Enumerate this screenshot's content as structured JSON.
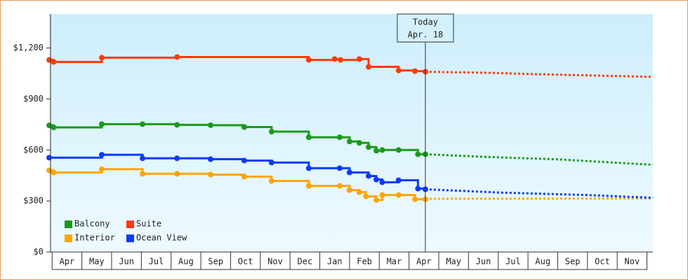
{
  "chart_data": {
    "type": "step-line",
    "xlim": [
      -0.1,
      20.2
    ],
    "xtick_labels": [
      "Apr",
      "May",
      "Jun",
      "Jul",
      "Aug",
      "Sep",
      "Oct",
      "Nov",
      "Dec",
      "Jan",
      "Feb",
      "Mar",
      "Apr",
      "May",
      "Jun",
      "Jul",
      "Aug",
      "Sep",
      "Oct",
      "Nov"
    ],
    "ylim": [
      0,
      1400
    ],
    "yticks": [
      {
        "value": 0,
        "label": "$0"
      },
      {
        "value": 300,
        "label": "$300"
      },
      {
        "value": 600,
        "label": "$600"
      },
      {
        "value": 900,
        "label": "$900"
      },
      {
        "value": 1200,
        "label": "$1,200"
      }
    ],
    "annotation": {
      "text": [
        "Today",
        "Apr. 18"
      ],
      "x": 12.55
    },
    "legend": "lower left",
    "series": [
      {
        "name": "Balcony",
        "color": "#1a9a1a",
        "x": [
          -0.1,
          0.05,
          1.67,
          3.04,
          4.2,
          5.33,
          6.46,
          7.38,
          8.63,
          9.67,
          10.0,
          10.33,
          10.64,
          10.9,
          11.1,
          11.65,
          12.3,
          12.55
        ],
        "values": [
          745,
          733,
          752,
          752,
          748,
          746,
          735,
          708,
          675,
          675,
          650,
          642,
          617,
          596,
          600,
          600,
          575,
          575
        ],
        "forecast_x": [
          12.55,
          14.5,
          17,
          20.2
        ],
        "forecast_values": [
          575,
          560,
          545,
          513
        ]
      },
      {
        "name": "Suite",
        "color": "#ff3a0a",
        "x": [
          -0.1,
          0.05,
          1.67,
          4.2,
          8.63,
          9.5,
          9.7,
          10.33,
          10.64,
          11.65,
          12.2,
          12.55
        ],
        "values": [
          1130,
          1118,
          1143,
          1147,
          1130,
          1135,
          1130,
          1135,
          1089,
          1068,
          1064,
          1060
        ],
        "forecast_x": [
          12.55,
          14.4,
          16.5,
          20.2
        ],
        "forecast_values": [
          1060,
          1055,
          1045,
          1030
        ]
      },
      {
        "name": "Interior",
        "color": "#ffa500",
        "x": [
          -0.1,
          0.05,
          1.67,
          3.04,
          4.2,
          5.33,
          6.46,
          7.38,
          8.63,
          9.67,
          10.0,
          10.33,
          10.55,
          10.9,
          11.1,
          11.65,
          12.2,
          12.55
        ],
        "values": [
          480,
          468,
          487,
          460,
          460,
          455,
          443,
          418,
          389,
          389,
          364,
          352,
          327,
          306,
          335,
          335,
          310,
          310
        ],
        "forecast_x": [
          12.55,
          20.2
        ],
        "forecast_values": [
          313,
          315
        ]
      },
      {
        "name": "Ocean View",
        "color": "#0a3aff",
        "x": [
          -0.1,
          1.67,
          3.04,
          4.2,
          5.33,
          6.46,
          7.38,
          8.63,
          9.67,
          10.0,
          10.64,
          10.9,
          11.1,
          11.65,
          12.3,
          12.55
        ],
        "values": [
          555,
          572,
          551,
          551,
          546,
          538,
          526,
          493,
          493,
          468,
          447,
          426,
          410,
          422,
          373,
          369
        ],
        "forecast_x": [
          12.55,
          15,
          18,
          20.2
        ],
        "forecast_values": [
          369,
          350,
          335,
          319
        ]
      }
    ]
  }
}
